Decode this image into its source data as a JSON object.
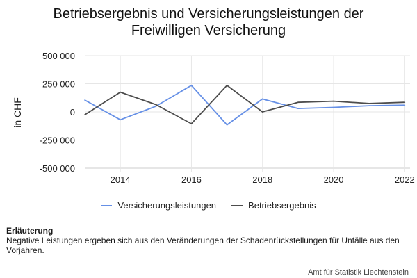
{
  "title_line1": "Betriebsergebnis und Versicherungsleistungen der",
  "title_line2": "Freiwilligen Versicherung",
  "note_heading": "Erläuterung",
  "note_text": "Negative Leistungen ergeben sich aus den Veränderungen der Schadenrückstellungen für Unfälle aus den Vorjahren.",
  "source": "Amt für Statistik Liechtenstein",
  "chart_data": {
    "type": "line",
    "title": "Betriebsergebnis und Versicherungsleistungen der Freiwilligen Versicherung",
    "xlabel": "",
    "ylabel": "in CHF",
    "x": [
      2013,
      2014,
      2015,
      2016,
      2017,
      2018,
      2019,
      2020,
      2021,
      2022
    ],
    "xticks": [
      2014,
      2016,
      2018,
      2020,
      2022
    ],
    "yticks": [
      500000,
      250000,
      0,
      -250000,
      -500000
    ],
    "ytick_labels": [
      "500 000",
      "250 000",
      "0",
      "-250 000",
      "-500 000"
    ],
    "ylim": [
      -500000,
      500000
    ],
    "grid": true,
    "legend_position": "bottom",
    "series": [
      {
        "name": "Versicherungsleistungen",
        "color": "#6690e6",
        "values": [
          105000,
          -70000,
          50000,
          235000,
          -115000,
          115000,
          30000,
          40000,
          55000,
          60000
        ]
      },
      {
        "name": "Betriebsergebnis",
        "color": "#4d4d4d",
        "values": [
          -25000,
          175000,
          65000,
          -105000,
          235000,
          0,
          85000,
          95000,
          75000,
          85000
        ]
      }
    ]
  }
}
